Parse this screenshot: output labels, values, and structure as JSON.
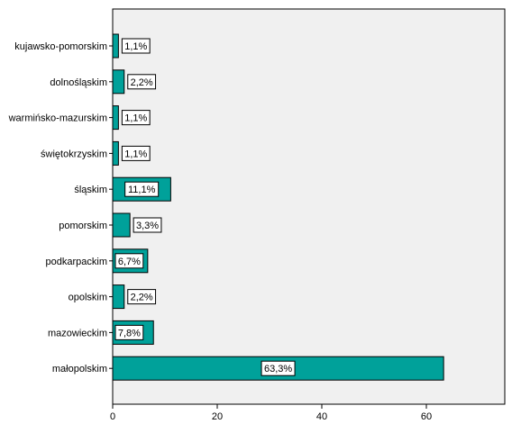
{
  "chart_data": {
    "type": "bar",
    "orientation": "horizontal",
    "categories": [
      "kujawsko-pomorskim",
      "dolnośląskim",
      "warmińsko-mazurskim",
      "świętokrzyskim",
      "śląskim",
      "pomorskim",
      "podkarpackim",
      "opolskim",
      "mazowieckim",
      "małopolskim"
    ],
    "values": [
      1.1,
      2.2,
      1.1,
      1.1,
      11.1,
      3.3,
      6.7,
      2.2,
      7.8,
      63.3
    ],
    "data_labels": [
      "1,1%",
      "2,2%",
      "1,1%",
      "1,1%",
      "11,1%",
      "3,3%",
      "6,7%",
      "2,2%",
      "7,8%",
      "63,3%"
    ],
    "x_ticks": [
      "0",
      "20",
      "40",
      "60"
    ],
    "xlim": [
      0,
      75
    ],
    "grid": false,
    "colors": {
      "bar": "#00a19a",
      "plot_background": "#f0f0f0",
      "axis": "#000000"
    }
  }
}
